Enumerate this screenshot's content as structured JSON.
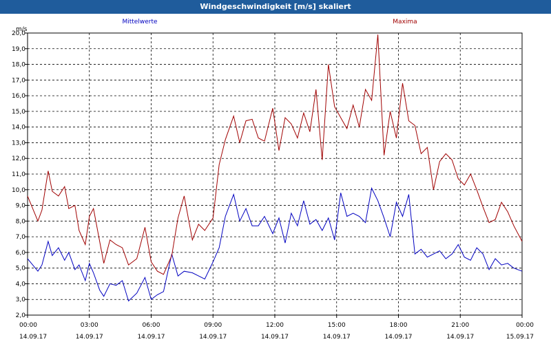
{
  "window": {
    "title": "Windgeschwindigkeit [m/s] skaliert"
  },
  "colors": {
    "titlebar": "#1f5c9c",
    "mean": "#0000c0",
    "max": "#a00000",
    "grid": "#000000"
  },
  "chart_data": {
    "type": "line",
    "title": "Windgeschwindigkeit [m/s] skaliert",
    "ylabel": "m/s",
    "xlabel": "",
    "ylim": [
      2.0,
      20.0
    ],
    "xlim": [
      0,
      24
    ],
    "grid": true,
    "legend_placement": "top",
    "yticks": [
      "2,0",
      "3,0",
      "4,0",
      "5,0",
      "6,0",
      "7,0",
      "8,0",
      "9,0",
      "10,0",
      "11,0",
      "12,0",
      "13,0",
      "14,0",
      "15,0",
      "16,0",
      "17,0",
      "18,0",
      "19,0",
      "20,0"
    ],
    "xticks": [
      {
        "time": "00:00",
        "date": "14.09.17"
      },
      {
        "time": "03:00",
        "date": "14.09.17"
      },
      {
        "time": "06:00",
        "date": "14.09.17"
      },
      {
        "time": "09:00",
        "date": "14.09.17"
      },
      {
        "time": "12:00",
        "date": "14.09.17"
      },
      {
        "time": "15:00",
        "date": "14.09.17"
      },
      {
        "time": "18:00",
        "date": "14.09.17"
      },
      {
        "time": "21:00",
        "date": "14.09.17"
      },
      {
        "time": "00:00",
        "date": "15.09.17"
      }
    ],
    "series": [
      {
        "name": "Mittelwerte",
        "x": [
          0,
          0.5,
          0.7,
          1,
          1.2,
          1.5,
          1.8,
          2,
          2.3,
          2.5,
          2.8,
          3,
          3.2,
          3.5,
          3.7,
          4,
          4.3,
          4.6,
          4.9,
          5.3,
          5.7,
          6,
          6.3,
          6.6,
          7,
          7.3,
          7.6,
          8,
          8.3,
          8.6,
          9,
          9.3,
          9.6,
          10,
          10.3,
          10.6,
          10.9,
          11.2,
          11.5,
          11.9,
          12.2,
          12.5,
          12.8,
          13.1,
          13.4,
          13.7,
          14,
          14.3,
          14.6,
          14.9,
          15.2,
          15.5,
          15.8,
          16.1,
          16.4,
          16.7,
          17,
          17.3,
          17.6,
          17.9,
          18.2,
          18.5,
          18.8,
          19.1,
          19.4,
          19.7,
          20,
          20.3,
          20.6,
          20.9,
          21.2,
          21.5,
          21.8,
          22.1,
          22.4,
          22.7,
          23,
          23.3,
          23.6,
          24
        ],
        "values": [
          5.6,
          4.8,
          5.2,
          6.7,
          5.8,
          6.3,
          5.5,
          6.0,
          4.9,
          5.2,
          4.2,
          5.3,
          4.7,
          3.6,
          3.2,
          4.0,
          3.9,
          4.2,
          2.9,
          3.4,
          4.4,
          3.0,
          3.3,
          3.5,
          5.9,
          4.5,
          4.8,
          4.7,
          4.5,
          4.3,
          5.4,
          6.3,
          8.3,
          9.7,
          8.0,
          8.8,
          7.7,
          7.7,
          8.3,
          7.2,
          8.2,
          6.6,
          8.5,
          7.7,
          9.3,
          7.8,
          8.1,
          7.4,
          8.2,
          6.8,
          9.8,
          8.3,
          8.5,
          8.3,
          7.9,
          10.1,
          9.3,
          8.2,
          7.0,
          9.2,
          8.3,
          9.7,
          5.9,
          6.2,
          5.7,
          5.9,
          6.1,
          5.6,
          5.9,
          6.5,
          5.7,
          5.5,
          6.3,
          5.9,
          4.9,
          5.6,
          5.2,
          5.3,
          5.0,
          4.8
        ],
        "color": "#0000c0"
      },
      {
        "name": "Maxima",
        "x": [
          0,
          0.5,
          0.7,
          1,
          1.2,
          1.5,
          1.8,
          2,
          2.3,
          2.5,
          2.8,
          3,
          3.2,
          3.5,
          3.7,
          4,
          4.3,
          4.6,
          4.9,
          5.3,
          5.7,
          6,
          6.3,
          6.6,
          7,
          7.3,
          7.6,
          8,
          8.3,
          8.6,
          9,
          9.3,
          9.6,
          10,
          10.3,
          10.6,
          10.9,
          11.2,
          11.5,
          11.9,
          12.2,
          12.5,
          12.8,
          13.1,
          13.4,
          13.7,
          14,
          14.3,
          14.6,
          14.9,
          15.2,
          15.5,
          15.8,
          16.1,
          16.4,
          16.7,
          17,
          17.3,
          17.6,
          17.9,
          18.2,
          18.5,
          18.8,
          19.1,
          19.4,
          19.7,
          20,
          20.3,
          20.6,
          20.9,
          21.2,
          21.5,
          21.8,
          22.1,
          22.4,
          22.7,
          23,
          23.3,
          23.6,
          24
        ],
        "values": [
          9.6,
          8.0,
          8.7,
          11.2,
          9.9,
          9.6,
          10.2,
          8.8,
          9.0,
          7.4,
          6.5,
          8.3,
          8.8,
          6.7,
          5.3,
          6.8,
          6.5,
          6.3,
          5.2,
          5.6,
          7.6,
          5.4,
          4.8,
          4.6,
          5.8,
          8.2,
          9.6,
          6.8,
          7.8,
          7.4,
          8.2,
          11.6,
          13.2,
          14.7,
          13.0,
          14.4,
          14.5,
          13.3,
          13.1,
          15.2,
          12.5,
          14.6,
          14.2,
          13.3,
          14.9,
          13.7,
          16.4,
          11.9,
          18.0,
          15.3,
          14.6,
          13.9,
          15.4,
          14.0,
          16.4,
          15.7,
          19.9,
          12.2,
          15.0,
          13.3,
          16.8,
          14.4,
          14.1,
          12.3,
          12.7,
          10.0,
          11.8,
          12.3,
          11.9,
          10.7,
          10.3,
          11.0,
          10.0,
          8.9,
          7.9,
          8.1,
          9.2,
          8.6,
          7.7,
          6.7
        ],
        "color": "#a00000"
      }
    ]
  }
}
